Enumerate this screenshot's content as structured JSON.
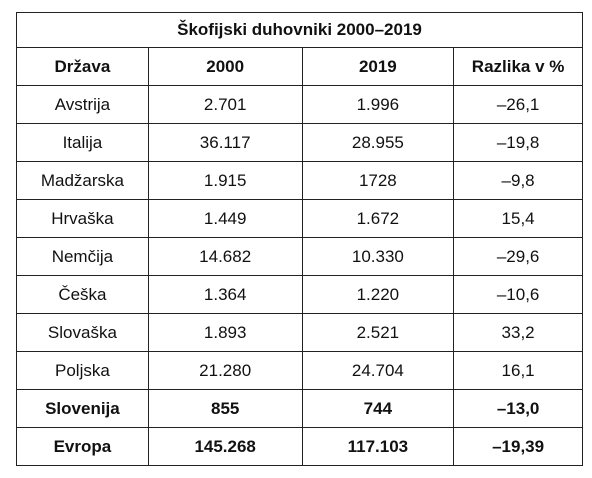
{
  "table": {
    "title": "Škofijski duhovniki 2000–2019",
    "header": [
      "Država",
      "2000",
      "2019",
      "Razlika v %"
    ],
    "rows": [
      [
        "Avstrija",
        "2.701",
        "1.996",
        "–26,1"
      ],
      [
        "Italija",
        "36.117",
        "28.955",
        "–19,8"
      ],
      [
        "Madžarska",
        "1.915",
        "1728",
        "–9,8"
      ],
      [
        "Hrvaška",
        "1.449",
        "1.672",
        "15,4"
      ],
      [
        "Nemčija",
        "14.682",
        "10.330",
        "–29,6"
      ],
      [
        "Češka",
        "1.364",
        "1.220",
        "–10,6"
      ],
      [
        "Slovaška",
        "1.893",
        "2.521",
        "33,2"
      ],
      [
        "Poljska",
        "21.280",
        "24.704",
        "16,1"
      ],
      [
        "Slovenija",
        "855",
        "744",
        "–13,0"
      ],
      [
        "Evropa",
        "145.268",
        "117.103",
        "–19,39"
      ]
    ],
    "bold_rows": [
      8,
      9
    ]
  }
}
